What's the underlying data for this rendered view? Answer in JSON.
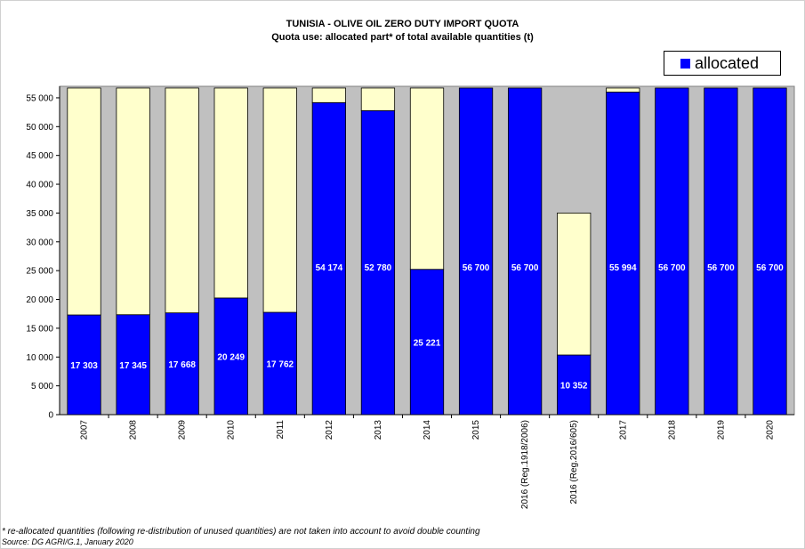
{
  "chart_data": {
    "type": "bar",
    "stacked": true,
    "title": "TUNISIA  - OLIVE OIL ZERO DUTY IMPORT QUOTA",
    "subtitle": "Quota use: allocated part* of total available quantities (t)",
    "categories": [
      "2007",
      "2008",
      "2009",
      "2010",
      "2011",
      "2012",
      "2013",
      "2014",
      "2015",
      "2016 (Reg.1918/2006)",
      "2016 (Reg.2016/605)",
      "2017",
      "2018",
      "2019",
      "2020"
    ],
    "series": [
      {
        "name": "allocated",
        "color": "#0000ff",
        "values": [
          17303,
          17345,
          17668,
          20249,
          17762,
          54174,
          52780,
          25221,
          56700,
          56700,
          10352,
          55994,
          56700,
          56700,
          56700
        ]
      },
      {
        "color": "#ffffcc",
        "values": [
          39397,
          39355,
          39032,
          36451,
          38938,
          2526,
          3920,
          31479,
          0,
          0,
          24648,
          706,
          0,
          0,
          0
        ]
      }
    ],
    "data_labels": [
      "17 303",
      "17 345",
      "17 668",
      "20 249",
      "17 762",
      "54 174",
      "52 780",
      "25 221",
      "56 700",
      "56 700",
      "10 352",
      "55 994",
      "56 700",
      "56 700",
      "56 700"
    ],
    "yticks": [
      "0",
      "5 000",
      "10 000",
      "15 000",
      "20 000",
      "25 000",
      "30 000",
      "35 000",
      "40 000",
      "45 000",
      "50 000",
      "55 000"
    ],
    "ylim": [
      0,
      57000
    ],
    "grid": false,
    "plot_background": "#c0c0c0",
    "legend": {
      "position": "top-right",
      "label": "allocated"
    }
  },
  "footnote": "* re-allocated quantities (following re-distribution of unused quantities) are not taken into account to avoid double counting",
  "source": "Source: DG AGRI/G.1,  January 2020"
}
